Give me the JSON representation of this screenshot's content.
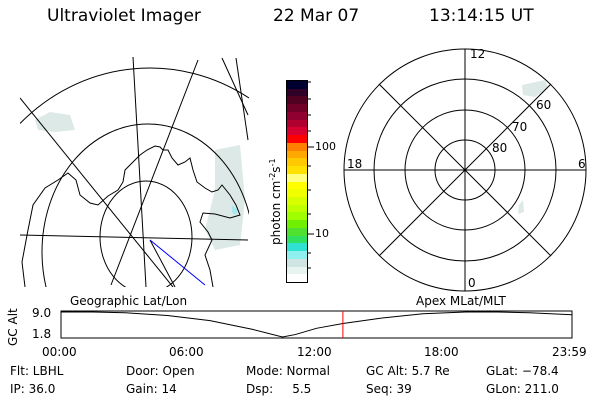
{
  "header": {
    "instrument": "Ultraviolet Imager",
    "date": "22 Mar 07",
    "time": "13:14:15 UT"
  },
  "colorbar": {
    "label": "photon cm",
    "label_exp1": "-2",
    "label_mid": "s",
    "label_exp2": "-1",
    "ticks": [
      "100",
      "10"
    ],
    "colors": [
      "#000030",
      "#300028",
      "#500020",
      "#700028",
      "#900030",
      "#b00030",
      "#d80030",
      "#ff0000",
      "#ff8000",
      "#ffa800",
      "#ffc800",
      "#ffe000",
      "#ffff80",
      "#ffff00",
      "#f0ff00",
      "#d8ff00",
      "#c0ff00",
      "#a0ff00",
      "#70f000",
      "#50e030",
      "#30e060",
      "#30e0d0",
      "#90f0f0",
      "#d0e4e4",
      "#e8f4f0",
      "#ffffff"
    ]
  },
  "polar": {
    "mlt_labels": {
      "top": "12",
      "left": "18",
      "right": "6",
      "bottom": "0"
    },
    "lat_labels": [
      "60",
      "70",
      "80"
    ]
  },
  "timeline": {
    "left_title": "Geographic Lat/Lon",
    "right_title": "Apex MLat/MLT",
    "ylabel": "GC Alt",
    "ytick_top": "9.0",
    "ytick_bottom": "1.8",
    "xticks": [
      "00:00",
      "06:00",
      "12:00",
      "18:00",
      "23:59"
    ],
    "current_marker_color": "#ff0000"
  },
  "chart_data": {
    "type": "line",
    "ylabel": "GC Alt",
    "ylim": [
      1.8,
      9.0
    ],
    "xlim_hours": [
      0,
      24
    ],
    "x_hours": [
      0,
      1.5,
      3,
      5,
      7,
      9,
      10.4,
      11,
      12,
      13.24,
      15,
      17,
      19,
      20.5,
      22,
      24
    ],
    "values": [
      9.0,
      9.0,
      8.8,
      8.0,
      6.5,
      4.0,
      1.8,
      2.5,
      4.3,
      5.7,
      7.2,
      8.5,
      9.0,
      9.0,
      8.8,
      8.2
    ],
    "current_time_hours": 13.24
  },
  "footer": {
    "row1": [
      "Flt: LBHL",
      "Door: Open",
      "Mode: Normal",
      "GC Alt: 5.7 Re",
      "GLat: −78.4"
    ],
    "row2": [
      "IP: 36.0",
      "Gain: 14",
      "Dsp:     5.5",
      "Seq: 39",
      "GLon: 211.0"
    ]
  }
}
